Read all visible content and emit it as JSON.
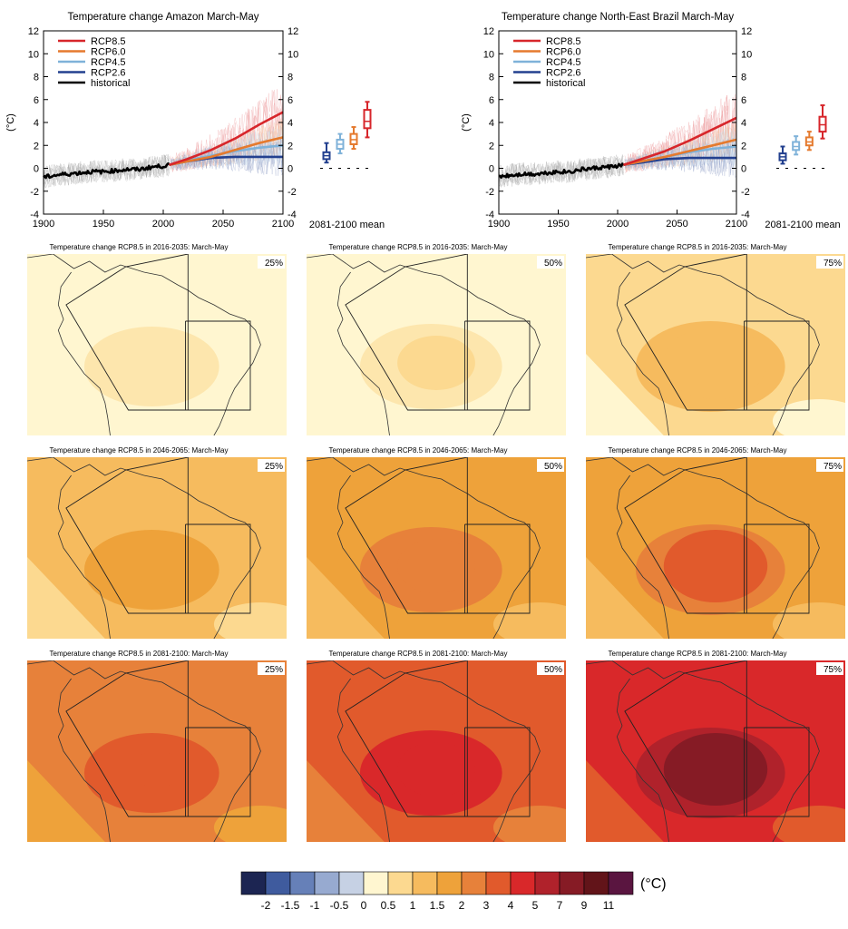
{
  "colors": {
    "RCP8.5": "#d7262b",
    "RCP6.0": "#e57a2e",
    "RCP4.5": "#7fb2d9",
    "RCP2.6": "#23408f",
    "historical": "#000000"
  },
  "chart_data": [
    {
      "type": "line",
      "title": "Temperature change Amazon March-May",
      "ylabel": "(°C)",
      "xlim": [
        1900,
        2100
      ],
      "ylim": [
        -4,
        12
      ],
      "xticks": [
        1900,
        1950,
        2000,
        2050,
        2100
      ],
      "yticks": [
        -4,
        -2,
        0,
        2,
        4,
        6,
        8,
        10,
        12
      ],
      "grid": false,
      "legend": "top-left",
      "legend_entries": [
        "RCP8.5",
        "RCP6.0",
        "RCP4.5",
        "RCP2.6",
        "historical"
      ],
      "series": [
        {
          "name": "historical",
          "x": [
            1900,
            1910,
            1920,
            1930,
            1940,
            1950,
            1960,
            1970,
            1980,
            1990,
            2000,
            2005
          ],
          "values": [
            -0.8,
            -0.6,
            -0.5,
            -0.4,
            -0.3,
            -0.3,
            -0.2,
            -0.1,
            -0.1,
            0.1,
            0.2,
            0.3
          ]
        },
        {
          "name": "RCP2.6",
          "x": [
            2005,
            2020,
            2040,
            2060,
            2080,
            2100
          ],
          "values": [
            0.3,
            0.6,
            0.9,
            1.0,
            1.0,
            1.0
          ]
        },
        {
          "name": "RCP4.5",
          "x": [
            2005,
            2020,
            2040,
            2060,
            2080,
            2100
          ],
          "values": [
            0.3,
            0.7,
            1.1,
            1.5,
            1.8,
            2.0
          ]
        },
        {
          "name": "RCP6.0",
          "x": [
            2005,
            2020,
            2040,
            2060,
            2080,
            2100
          ],
          "values": [
            0.3,
            0.6,
            1.0,
            1.6,
            2.2,
            2.7
          ]
        },
        {
          "name": "RCP8.5",
          "x": [
            2005,
            2020,
            2040,
            2060,
            2080,
            2100
          ],
          "values": [
            0.3,
            0.8,
            1.6,
            2.6,
            3.8,
            4.9
          ]
        }
      ],
      "box_label": "2081-2100 mean",
      "boxplots": [
        {
          "name": "RCP2.6",
          "whisker_low": 0.5,
          "q1": 0.8,
          "median": 1.1,
          "q3": 1.4,
          "whisker_high": 2.2
        },
        {
          "name": "RCP4.5",
          "whisker_low": 1.3,
          "q1": 1.7,
          "median": 2.1,
          "q3": 2.5,
          "whisker_high": 3.0
        },
        {
          "name": "RCP6.0",
          "whisker_low": 1.7,
          "q1": 2.1,
          "median": 2.5,
          "q3": 3.0,
          "whisker_high": 3.6
        },
        {
          "name": "RCP8.5",
          "whisker_low": 2.7,
          "q1": 3.5,
          "median": 4.1,
          "q3": 5.1,
          "whisker_high": 5.8
        }
      ]
    },
    {
      "type": "line",
      "title": "Temperature change North-East Brazil March-May",
      "ylabel": "(°C)",
      "xlim": [
        1900,
        2100
      ],
      "ylim": [
        -4,
        12
      ],
      "xticks": [
        1900,
        1950,
        2000,
        2050,
        2100
      ],
      "yticks": [
        -4,
        -2,
        0,
        2,
        4,
        6,
        8,
        10,
        12
      ],
      "grid": false,
      "legend": "top-left",
      "legend_entries": [
        "RCP8.5",
        "RCP6.0",
        "RCP4.5",
        "RCP2.6",
        "historical"
      ],
      "series": [
        {
          "name": "historical",
          "x": [
            1900,
            1910,
            1920,
            1930,
            1940,
            1950,
            1960,
            1970,
            1980,
            1990,
            2000,
            2005
          ],
          "values": [
            -0.7,
            -0.6,
            -0.5,
            -0.5,
            -0.4,
            -0.3,
            -0.3,
            -0.1,
            0.0,
            0.1,
            0.2,
            0.3
          ]
        },
        {
          "name": "RCP2.6",
          "x": [
            2005,
            2020,
            2040,
            2060,
            2080,
            2100
          ],
          "values": [
            0.3,
            0.5,
            0.8,
            0.9,
            0.9,
            0.9
          ]
        },
        {
          "name": "RCP4.5",
          "x": [
            2005,
            2020,
            2040,
            2060,
            2080,
            2100
          ],
          "values": [
            0.3,
            0.6,
            1.0,
            1.4,
            1.7,
            1.9
          ]
        },
        {
          "name": "RCP6.0",
          "x": [
            2005,
            2020,
            2040,
            2060,
            2080,
            2100
          ],
          "values": [
            0.3,
            0.6,
            1.0,
            1.5,
            2.0,
            2.5
          ]
        },
        {
          "name": "RCP8.5",
          "x": [
            2005,
            2020,
            2040,
            2060,
            2080,
            2100
          ],
          "values": [
            0.3,
            0.8,
            1.5,
            2.4,
            3.4,
            4.4
          ]
        }
      ],
      "box_label": "2081-2100 mean",
      "boxplots": [
        {
          "name": "RCP2.6",
          "whisker_low": 0.4,
          "q1": 0.7,
          "median": 1.0,
          "q3": 1.3,
          "whisker_high": 1.9
        },
        {
          "name": "RCP4.5",
          "whisker_low": 1.2,
          "q1": 1.6,
          "median": 1.9,
          "q3": 2.3,
          "whisker_high": 2.8
        },
        {
          "name": "RCP6.0",
          "whisker_low": 1.6,
          "q1": 2.0,
          "median": 2.3,
          "q3": 2.7,
          "whisker_high": 3.2
        },
        {
          "name": "RCP8.5",
          "whisker_low": 2.6,
          "q1": 3.2,
          "median": 3.8,
          "q3": 4.5,
          "whisker_high": 5.5
        }
      ]
    },
    {
      "type": "heatmap",
      "subtype": "maps",
      "map_titles": [
        "Temperature change RCP8.5 in 2016-2035: March-May",
        "Temperature change RCP8.5 in 2046-2065: March-May",
        "Temperature change RCP8.5 in 2081-2100: March-May"
      ],
      "percentiles": [
        "25%",
        "50%",
        "75%"
      ],
      "dominant_category": [
        [
          "0.5",
          "0.5",
          "1"
        ],
        [
          "1.5",
          "2",
          "2"
        ],
        [
          "3",
          "4",
          "5"
        ]
      ],
      "colorbar": {
        "unit": "(°C)",
        "tick_labels": [
          "-2",
          "-1.5",
          "-1",
          "-0.5",
          "0",
          "0.5",
          "1",
          "1.5",
          "2",
          "3",
          "4",
          "5",
          "7",
          "9",
          "11"
        ],
        "colors": [
          "#1c2552",
          "#3f5b9e",
          "#6680b8",
          "#97aad0",
          "#c6d1e4",
          "#fff6d0",
          "#fcd990",
          "#f6bb5e",
          "#eea23a",
          "#e7813a",
          "#e15a2c",
          "#d9282a",
          "#b0222b",
          "#861b25",
          "#621419",
          "#5a1540"
        ]
      }
    }
  ]
}
